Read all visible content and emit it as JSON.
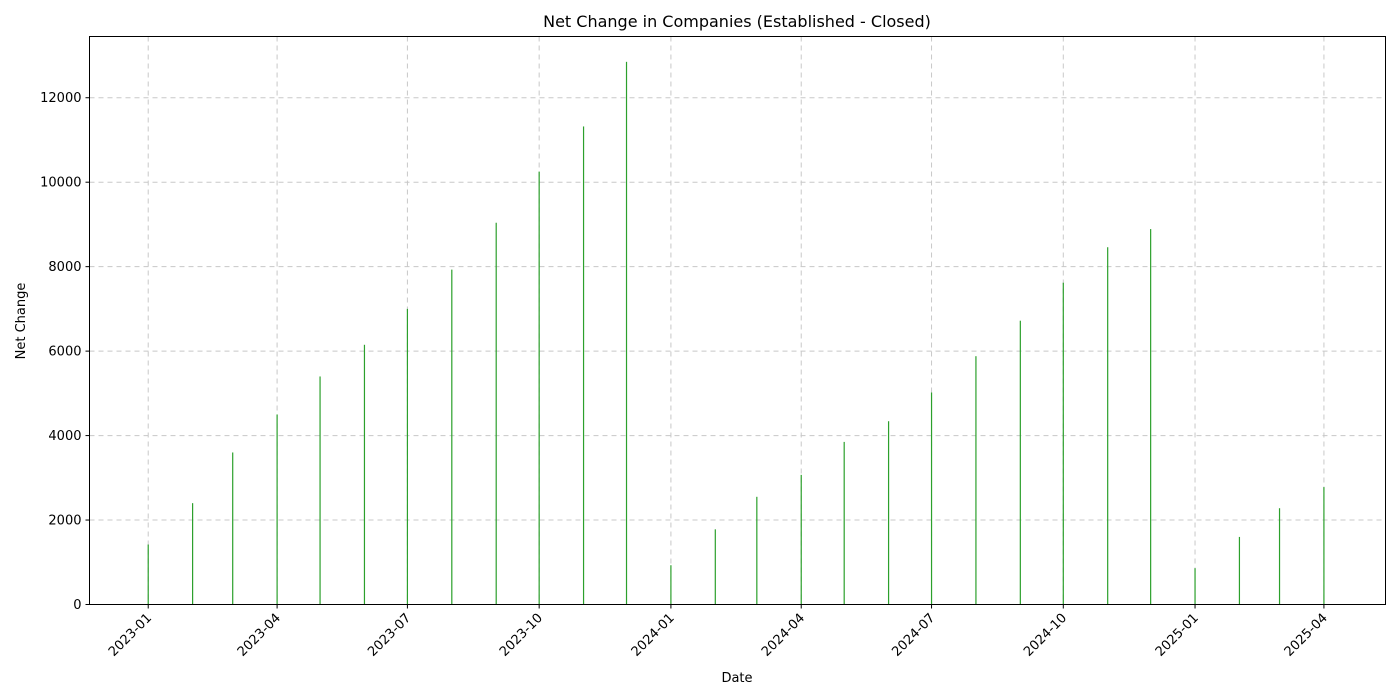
{
  "chart_data": {
    "type": "bar",
    "title": "Net Change in Companies (Established - Closed)",
    "xlabel": "Date",
    "ylabel": "Net Change",
    "x_axis_type": "date",
    "xlim": [
      "2022-11-21",
      "2025-05-14"
    ],
    "ylim": [
      0,
      13450
    ],
    "y_ticks": [
      0,
      2000,
      4000,
      6000,
      8000,
      10000,
      12000
    ],
    "x_ticks": [
      "2023-01",
      "2023-04",
      "2023-07",
      "2023-10",
      "2024-01",
      "2024-04",
      "2024-07",
      "2024-10",
      "2025-01",
      "2025-04"
    ],
    "grid": true,
    "bar_color": "#2ca02c",
    "x": [
      "2023-01-01",
      "2023-02-01",
      "2023-03-01",
      "2023-04-01",
      "2023-05-01",
      "2023-06-01",
      "2023-07-01",
      "2023-08-01",
      "2023-09-01",
      "2023-10-01",
      "2023-11-01",
      "2023-12-01",
      "2024-01-01",
      "2024-02-01",
      "2024-03-01",
      "2024-04-01",
      "2024-05-01",
      "2024-06-01",
      "2024-07-01",
      "2024-08-01",
      "2024-09-01",
      "2024-10-01",
      "2024-11-01",
      "2024-12-01",
      "2025-01-01",
      "2025-02-01",
      "2025-03-01",
      "2025-04-01"
    ],
    "values": [
      1420,
      2400,
      3600,
      4500,
      5400,
      6150,
      7000,
      7930,
      9040,
      10250,
      11320,
      12850,
      930,
      1780,
      2550,
      3070,
      3850,
      4340,
      5020,
      5880,
      6720,
      7620,
      8460,
      8890,
      860,
      1600,
      2280,
      2780
    ]
  }
}
